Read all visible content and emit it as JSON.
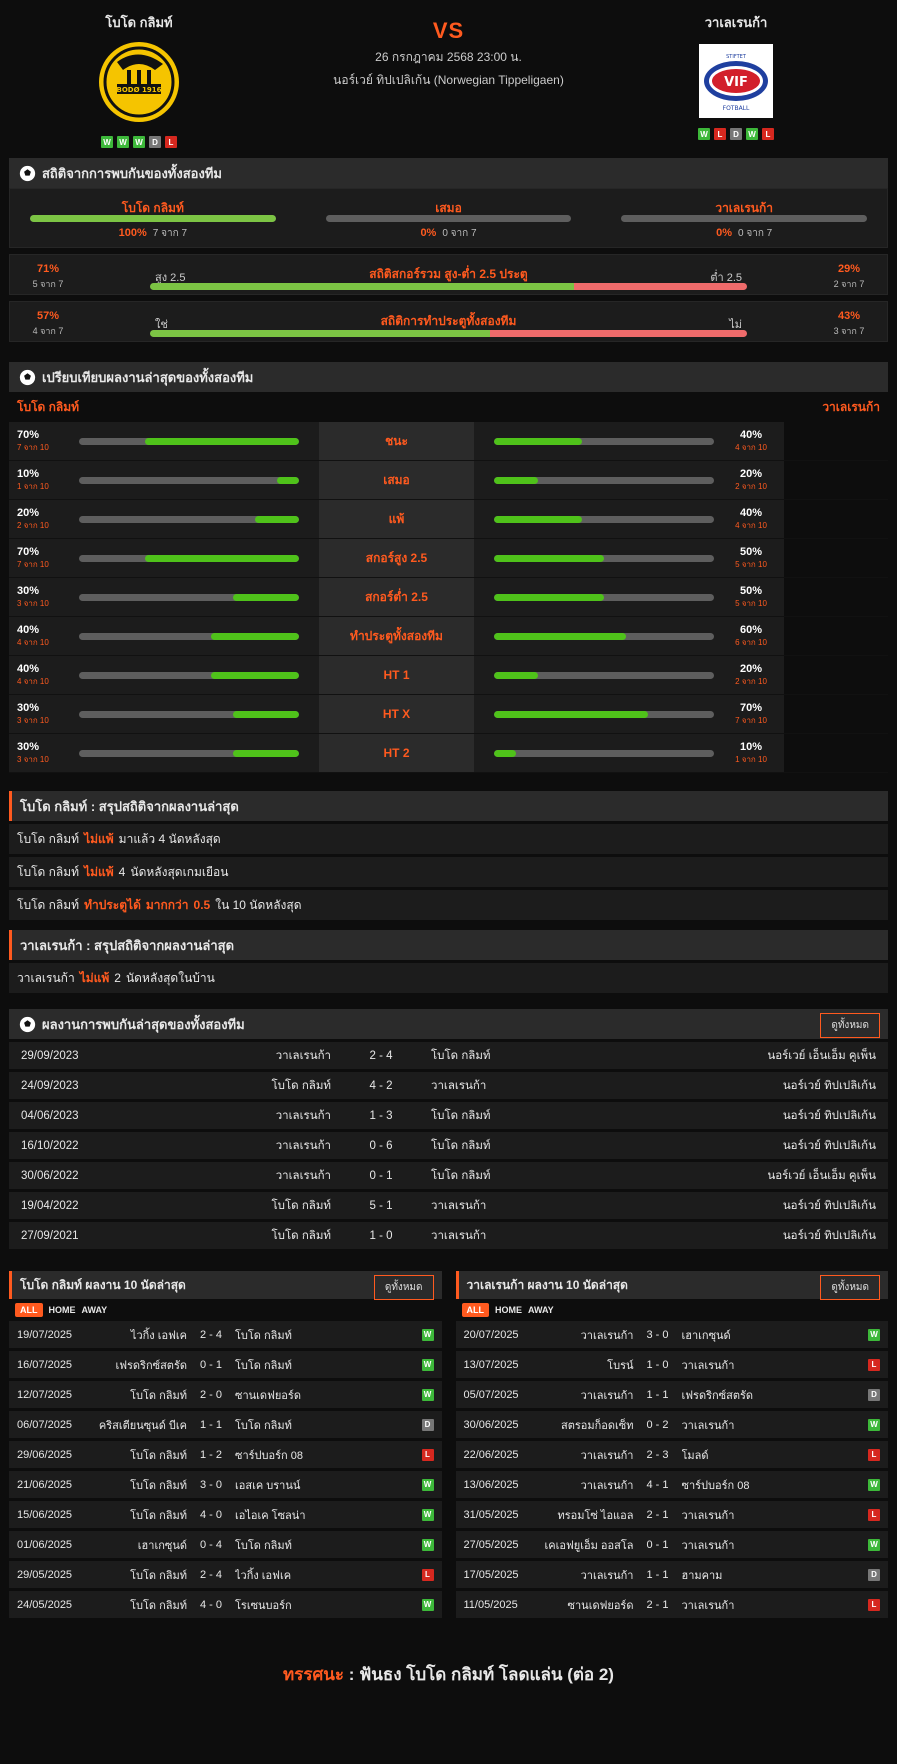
{
  "match": {
    "home": "โบโด กลิมท์",
    "away": "วาเลเรนก้า",
    "vs": "VS",
    "date": "26 กรกฎาคม 2568 23:00 น.",
    "league": "นอร์เวย์ ทิปเปลิเก้น (Norwegian Tippeligaen)",
    "home_form": [
      "W",
      "W",
      "W",
      "D",
      "L"
    ],
    "away_form": [
      "W",
      "L",
      "D",
      "W",
      "L"
    ]
  },
  "h2h_stats": {
    "title": "สถิติจากการพบกันของทั้งสองทีม",
    "cols": [
      {
        "label": "โบโด กลิมท์",
        "pct": "100%",
        "count": "7 จาก 7",
        "fill": 100
      },
      {
        "label": "เสมอ",
        "pct": "0%",
        "count": "0 จาก 7",
        "fill": 0
      },
      {
        "label": "วาเลเรนก้า",
        "pct": "0%",
        "count": "0 จาก 7",
        "fill": 0
      }
    ],
    "ou": {
      "title": "สถิติสกอร์รวม สูง-ต่ำ 2.5 ประตู",
      "left_label": "สูง 2.5",
      "right_label": "ต่ำ 2.5",
      "left_pct": "71%",
      "left_count": "5 จาก 7",
      "right_pct": "29%",
      "right_count": "2 จาก 7",
      "fill": 71
    },
    "btts": {
      "title": "สถิติการทำประตูทั้งสองทีม",
      "left_label": "ใช่",
      "right_label": "ไม่",
      "left_pct": "57%",
      "left_count": "4 จาก 7",
      "right_pct": "43%",
      "right_count": "3 จาก 7",
      "fill": 57
    }
  },
  "compare": {
    "title": "เปรียบเทียบผลงานล่าสุดของทั้งสองทีม",
    "home": "โบโด กลิมท์",
    "away": "วาเลเรนก้า",
    "rows": [
      {
        "label": "ชนะ",
        "h_pct": "70%",
        "h_cnt": "7 จาก 10",
        "h": 70,
        "a_pct": "40%",
        "a_cnt": "4 จาก 10",
        "a": 40
      },
      {
        "label": "เสมอ",
        "h_pct": "10%",
        "h_cnt": "1 จาก 10",
        "h": 10,
        "a_pct": "20%",
        "a_cnt": "2 จาก 10",
        "a": 20
      },
      {
        "label": "แพ้",
        "h_pct": "20%",
        "h_cnt": "2 จาก 10",
        "h": 20,
        "a_pct": "40%",
        "a_cnt": "4 จาก 10",
        "a": 40
      },
      {
        "label": "สกอร์สูง 2.5",
        "h_pct": "70%",
        "h_cnt": "7 จาก 10",
        "h": 70,
        "a_pct": "50%",
        "a_cnt": "5 จาก 10",
        "a": 50
      },
      {
        "label": "สกอร์ต่ำ 2.5",
        "h_pct": "30%",
        "h_cnt": "3 จาก 10",
        "h": 30,
        "a_pct": "50%",
        "a_cnt": "5 จาก 10",
        "a": 50
      },
      {
        "label": "ทำประตูทั้งสองทีม",
        "h_pct": "40%",
        "h_cnt": "4 จาก 10",
        "h": 40,
        "a_pct": "60%",
        "a_cnt": "6 จาก 10",
        "a": 60
      },
      {
        "label": "HT 1",
        "h_pct": "40%",
        "h_cnt": "4 จาก 10",
        "h": 40,
        "a_pct": "20%",
        "a_cnt": "2 จาก 10",
        "a": 20
      },
      {
        "label": "HT X",
        "h_pct": "30%",
        "h_cnt": "3 จาก 10",
        "h": 30,
        "a_pct": "70%",
        "a_cnt": "7 จาก 10",
        "a": 70
      },
      {
        "label": "HT 2",
        "h_pct": "30%",
        "h_cnt": "3 จาก 10",
        "h": 30,
        "a_pct": "10%",
        "a_cnt": "1 จาก 10",
        "a": 10
      }
    ]
  },
  "summary_home": {
    "title": "โบโด กลิมท์ : สรุปสถิติจากผลงานล่าสุด",
    "rows": [
      [
        "โบโด กลิมท์",
        "ไม่แพ้",
        "มาแล้ว 4 นัดหลังสุด",
        "",
        ""
      ],
      [
        "โบโด กลิมท์",
        "ไม่แพ้",
        "4",
        "นัดหลังสุดเกมเยือน",
        ""
      ],
      [
        "โบโด กลิมท์",
        "ทำประตูได้",
        "มากกว่า",
        "0.5",
        "ใน 10 นัดหลังสุด"
      ]
    ]
  },
  "summary_away": {
    "title": "วาเลเรนก้า : สรุปสถิติจากผลงานล่าสุด",
    "rows": [
      [
        "วาเลเรนก้า",
        "ไม่แพ้",
        "2",
        "นัดหลังสุดในบ้าน"
      ]
    ]
  },
  "h2h_results": {
    "title": "ผลงานการพบกันล่าสุดของทั้งสองทีม",
    "view_all": "ดูทั้งหมด",
    "rows": [
      [
        "29/09/2023",
        "วาเลเรนก้า",
        "2 - 4",
        "โบโด กลิมท์",
        "นอร์เวย์ เอ็นเอ็ม คูเพ็น"
      ],
      [
        "24/09/2023",
        "โบโด กลิมท์",
        "4 - 2",
        "วาเลเรนก้า",
        "นอร์เวย์ ทิปเปลิเก้น"
      ],
      [
        "04/06/2023",
        "วาเลเรนก้า",
        "1 - 3",
        "โบโด กลิมท์",
        "นอร์เวย์ ทิปเปลิเก้น"
      ],
      [
        "16/10/2022",
        "วาเลเรนก้า",
        "0 - 6",
        "โบโด กลิมท์",
        "นอร์เวย์ ทิปเปลิเก้น"
      ],
      [
        "30/06/2022",
        "วาเลเรนก้า",
        "0 - 1",
        "โบโด กลิมท์",
        "นอร์เวย์ เอ็นเอ็ม คูเพ็น"
      ],
      [
        "19/04/2022",
        "โบโด กลิมท์",
        "5 - 1",
        "วาเลเรนก้า",
        "นอร์เวย์ ทิปเปลิเก้น"
      ],
      [
        "27/09/2021",
        "โบโด กลิมท์",
        "1 - 0",
        "วาเลเรนก้า",
        "นอร์เวย์ ทิปเปลิเก้น"
      ]
    ]
  },
  "last10_home": {
    "title": "โบโด กลิมท์ ผลงาน 10 นัดล่าสุด",
    "view_all": "ดูทั้งหมด",
    "tabs": [
      "ALL",
      "HOME",
      "AWAY"
    ],
    "rows": [
      [
        "19/07/2025",
        "ไวกิ้ง เอฟเค",
        "2 - 4",
        "โบโด กลิมท์",
        "W"
      ],
      [
        "16/07/2025",
        "เฟรดริกซ์สตรัด",
        "0 - 1",
        "โบโด กลิมท์",
        "W"
      ],
      [
        "12/07/2025",
        "โบโด กลิมท์",
        "2 - 0",
        "ซานเดฟยอร์ด",
        "W"
      ],
      [
        "06/07/2025",
        "คริสเตียนซุนด์ บีเค",
        "1 - 1",
        "โบโด กลิมท์",
        "D"
      ],
      [
        "29/06/2025",
        "โบโด กลิมท์",
        "1 - 2",
        "ซาร์ปบอร์ก 08",
        "L"
      ],
      [
        "21/06/2025",
        "โบโด กลิมท์",
        "3 - 0",
        "เอสเค บรานน์",
        "W"
      ],
      [
        "15/06/2025",
        "โบโด กลิมท์",
        "4 - 0",
        "เอไอเค โซลน่า",
        "W"
      ],
      [
        "01/06/2025",
        "เฮาเกซุนด์",
        "0 - 4",
        "โบโด กลิมท์",
        "W"
      ],
      [
        "29/05/2025",
        "โบโด กลิมท์",
        "2 - 4",
        "ไวกิ้ง เอฟเค",
        "L"
      ],
      [
        "24/05/2025",
        "โบโด กลิมท์",
        "4 - 0",
        "โรเซนบอร์ก",
        "W"
      ]
    ]
  },
  "last10_away": {
    "title": "วาเลเรนก้า ผลงาน 10 นัดล่าสุด",
    "view_all": "ดูทั้งหมด",
    "tabs": [
      "ALL",
      "HOME",
      "AWAY"
    ],
    "rows": [
      [
        "20/07/2025",
        "วาเลเรนก้า",
        "3 - 0",
        "เฮาเกซุนด์",
        "W"
      ],
      [
        "13/07/2025",
        "โบรน์",
        "1 - 0",
        "วาเลเรนก้า",
        "L"
      ],
      [
        "05/07/2025",
        "วาเลเรนก้า",
        "1 - 1",
        "เฟรดริกซ์สตรัด",
        "D"
      ],
      [
        "30/06/2025",
        "สตรอมก็อดเซ็ท",
        "0 - 2",
        "วาเลเรนก้า",
        "W"
      ],
      [
        "22/06/2025",
        "วาเลเรนก้า",
        "2 - 3",
        "โมลด์",
        "L"
      ],
      [
        "13/06/2025",
        "วาเลเรนก้า",
        "4 - 1",
        "ซาร์ปบอร์ก 08",
        "W"
      ],
      [
        "31/05/2025",
        "ทรอมโซ่ ไอแอล",
        "2 - 1",
        "วาเลเรนก้า",
        "L"
      ],
      [
        "27/05/2025",
        "เคเอฟยูเอ็ม ออสโล",
        "0 - 1",
        "วาเลเรนก้า",
        "W"
      ],
      [
        "17/05/2025",
        "วาเลเรนก้า",
        "1 - 1",
        "ฮามคาม",
        "D"
      ],
      [
        "11/05/2025",
        "ซานเดฟยอร์ด",
        "2 - 1",
        "วาเลเรนก้า",
        "L"
      ]
    ]
  },
  "verdict": {
    "label": "ทรรศนะ",
    "sep": ":",
    "text": "ฟันธง โบโด กลิมท์ โลดแล่น (ต่อ 2)"
  },
  "logo_text": {
    "home": "BODØ 1916",
    "away_top": "STIFTET",
    "away_mid": "VIF",
    "away_bottom": "FOTBALL"
  }
}
